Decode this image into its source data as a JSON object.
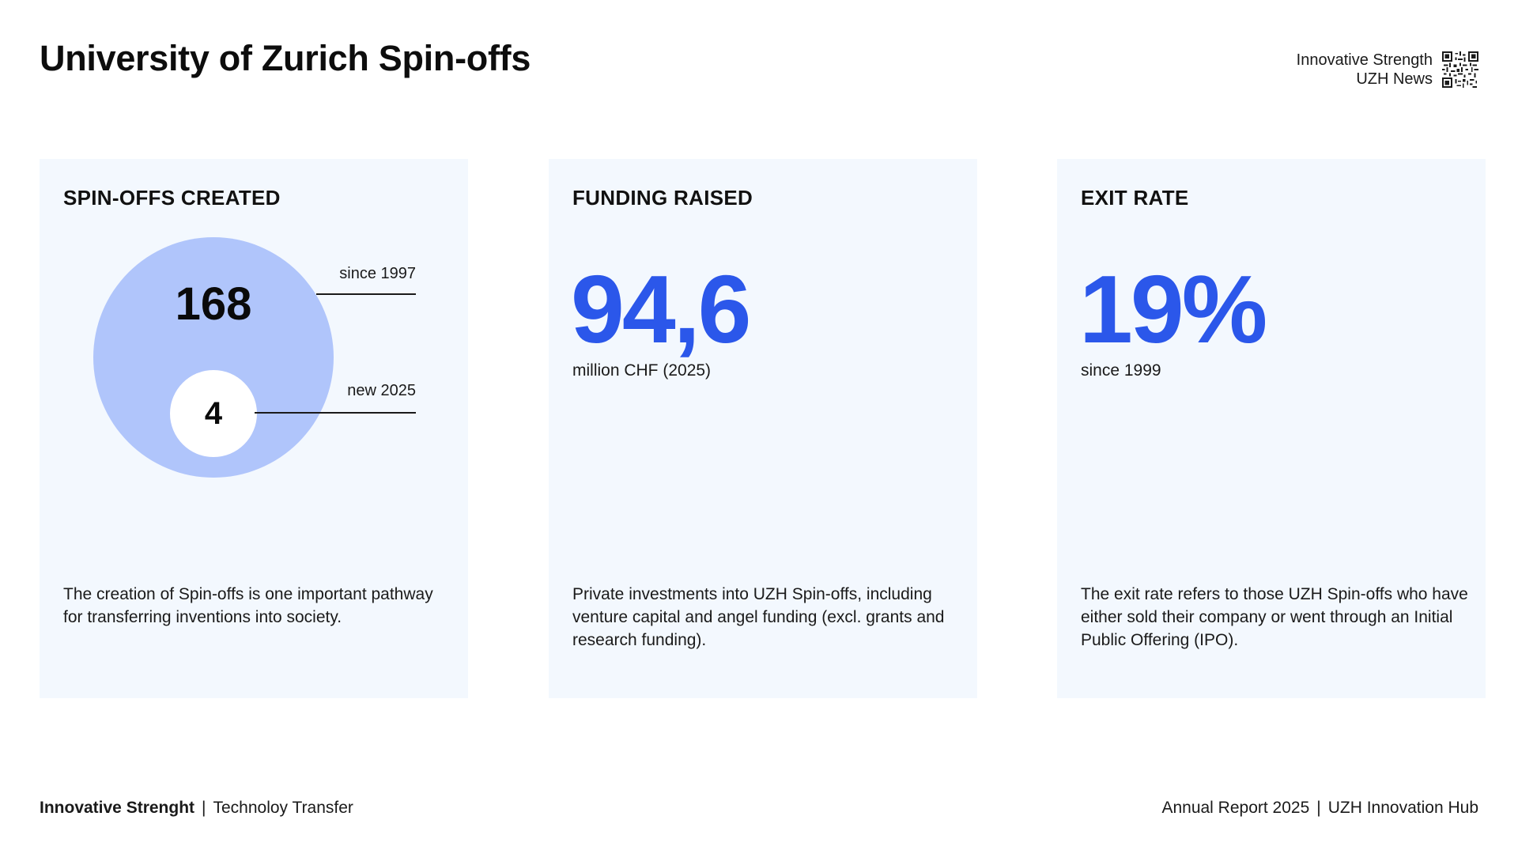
{
  "header": {
    "title": "University of Zurich Spin-offs",
    "links": [
      "Innovative Strength",
      "UZH News"
    ],
    "qr_icon": "qr-code-icon"
  },
  "cards": [
    {
      "heading": "SPIN-OFFS CREATED",
      "total_value": "168",
      "total_label": "since 1997",
      "new_value": "4",
      "new_label": "new 2025",
      "description": "The creation of Spin-offs is one important pathway for transferring inventions into society.",
      "colors": {
        "outer_circle": "#b0c5fb",
        "inner_circle": "#ffffff"
      }
    },
    {
      "heading": "FUNDING RAISED",
      "value": "94,6",
      "caption": "million CHF (2025)",
      "description": "Private investments into UZH Spin-offs, including venture capital and angel funding (excl. grants and research funding)."
    },
    {
      "heading": "EXIT RATE",
      "value": "19%",
      "caption": "since 1999",
      "description": "The exit rate refers to those UZH Spin-offs who have either sold their company or went through an Initial Public Offering (IPO)."
    }
  ],
  "footer": {
    "left_bold": "Innovative Strenght",
    "left_separator": "|",
    "left_text": "Technoloy Transfer",
    "right_text_1": "Annual Report 2025",
    "right_separator": "|",
    "right_text_2": "UZH Innovation Hub"
  },
  "colors": {
    "accent": "#2b57ea",
    "card_background": "#f3f8fe",
    "text": "#111111"
  }
}
